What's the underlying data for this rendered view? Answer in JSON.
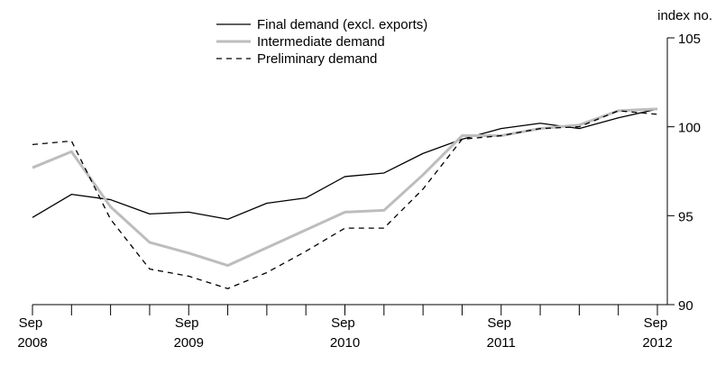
{
  "chart_data": {
    "type": "line",
    "y_axis_label": "index no.",
    "categories": [
      "Sep 2008",
      null,
      null,
      null,
      "Sep 2009",
      null,
      null,
      null,
      "Sep 2010",
      null,
      null,
      null,
      "Sep 2011",
      null,
      null,
      null,
      "Sep 2012"
    ],
    "series": [
      {
        "name": "Final demand (excl. exports)",
        "color": "#000000",
        "width": 1.3,
        "dash": false,
        "values": [
          94.9,
          96.2,
          95.9,
          95.1,
          95.2,
          94.8,
          95.7,
          96.0,
          97.2,
          97.4,
          98.5,
          99.3,
          99.9,
          100.2,
          99.9,
          100.5,
          101.0
        ]
      },
      {
        "name": "Intermediate demand",
        "color": "#bdbdbd",
        "width": 3,
        "dash": false,
        "values": [
          97.7,
          98.6,
          95.5,
          93.5,
          92.9,
          92.2,
          93.2,
          94.2,
          95.2,
          95.3,
          97.3,
          99.5,
          99.5,
          99.9,
          100.1,
          100.9,
          101.0
        ]
      },
      {
        "name": "Preliminary demand",
        "color": "#000000",
        "width": 1.3,
        "dash": true,
        "values": [
          99.0,
          99.2,
          94.8,
          92.0,
          91.6,
          90.9,
          91.8,
          93.0,
          94.3,
          94.3,
          96.5,
          99.3,
          99.5,
          99.9,
          100.0,
          100.9,
          100.7
        ]
      }
    ],
    "ylim": [
      90,
      105
    ],
    "yticks": [
      90,
      95,
      100,
      105
    ],
    "y_axis_side": "right",
    "grid": false
  }
}
